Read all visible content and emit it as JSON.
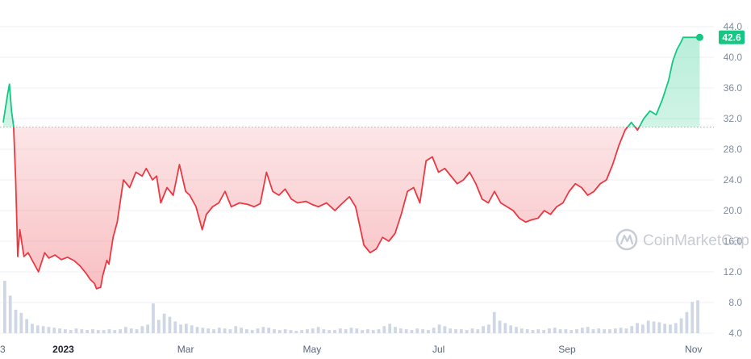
{
  "watermark": {
    "text": "CoinMarketCap"
  },
  "colors": {
    "up": "#16c784",
    "down": "#ea3943",
    "grid": "#eff2f5",
    "volume": "#cfd6e4",
    "baseline": "#a6b0c3"
  },
  "current_price_label": "42.6",
  "chart_data": {
    "type": "line",
    "title": "",
    "xlabel": "",
    "ylabel": "",
    "baseline": 30.9,
    "ylim": [
      4.0,
      44.0
    ],
    "yticks": [
      "4.0",
      "8.0",
      "12.0",
      "16.0",
      "20.0",
      "24.0",
      "28.0",
      "32.0",
      "36.0",
      "40.0",
      "44.0"
    ],
    "xtick_labels": [
      {
        "label": "3",
        "x": "2022-12-03",
        "bold": false
      },
      {
        "label": "2023",
        "x": "2023-01-01",
        "bold": true
      },
      {
        "label": "Mar",
        "x": "2023-03-01",
        "bold": false
      },
      {
        "label": "May",
        "x": "2023-05-01",
        "bold": false
      },
      {
        "label": "Jul",
        "x": "2023-07-01",
        "bold": false
      },
      {
        "label": "Sep",
        "x": "2023-09-01",
        "bold": false
      },
      {
        "label": "Nov",
        "x": "2023-11-01",
        "bold": false
      }
    ],
    "x_range": [
      "2022-12-03",
      "2023-11-05"
    ],
    "series": [
      {
        "x": [
          "2022-12-03",
          "2022-12-05",
          "2022-12-06",
          "2022-12-07",
          "2022-12-08",
          "2022-12-09",
          "2022-12-10",
          "2022-12-11",
          "2022-12-13",
          "2022-12-15",
          "2022-12-18",
          "2022-12-20",
          "2022-12-23",
          "2022-12-25",
          "2022-12-28",
          "2022-12-31",
          "2023-01-03",
          "2023-01-06",
          "2023-01-09",
          "2023-01-12",
          "2023-01-14",
          "2023-01-16",
          "2023-01-17",
          "2023-01-19",
          "2023-01-20",
          "2023-01-22",
          "2023-01-23",
          "2023-01-25",
          "2023-01-27",
          "2023-01-30",
          "2023-02-02",
          "2023-02-05",
          "2023-02-08",
          "2023-02-10",
          "2023-02-13",
          "2023-02-15",
          "2023-02-17",
          "2023-02-20",
          "2023-02-23",
          "2023-02-26",
          "2023-03-01",
          "2023-03-03",
          "2023-03-06",
          "2023-03-09",
          "2023-03-11",
          "2023-03-14",
          "2023-03-17",
          "2023-03-20",
          "2023-03-23",
          "2023-03-27",
          "2023-03-31",
          "2023-04-03",
          "2023-04-06",
          "2023-04-09",
          "2023-04-12",
          "2023-04-15",
          "2023-04-18",
          "2023-04-21",
          "2023-04-24",
          "2023-04-28",
          "2023-05-01",
          "2023-05-04",
          "2023-05-08",
          "2023-05-12",
          "2023-05-15",
          "2023-05-19",
          "2023-05-22",
          "2023-05-26",
          "2023-05-29",
          "2023-06-01",
          "2023-06-04",
          "2023-06-07",
          "2023-06-10",
          "2023-06-13",
          "2023-06-16",
          "2023-06-19",
          "2023-06-22",
          "2023-06-25",
          "2023-06-28",
          "2023-07-01",
          "2023-07-04",
          "2023-07-07",
          "2023-07-10",
          "2023-07-13",
          "2023-07-16",
          "2023-07-19",
          "2023-07-22",
          "2023-07-25",
          "2023-07-28",
          "2023-07-31",
          "2023-08-03",
          "2023-08-06",
          "2023-08-09",
          "2023-08-12",
          "2023-08-15",
          "2023-08-18",
          "2023-08-21",
          "2023-08-24",
          "2023-08-27",
          "2023-08-30",
          "2023-09-02",
          "2023-09-05",
          "2023-09-08",
          "2023-09-11",
          "2023-09-14",
          "2023-09-17",
          "2023-09-20",
          "2023-09-23",
          "2023-09-26",
          "2023-09-29",
          "2023-10-02",
          "2023-10-05",
          "2023-10-08",
          "2023-10-11",
          "2023-10-14",
          "2023-10-17",
          "2023-10-20",
          "2023-10-22",
          "2023-10-24",
          "2023-10-26",
          "2023-10-27",
          "2023-10-28",
          "2023-10-30",
          "2023-11-01",
          "2023-11-02",
          "2023-11-03",
          "2023-11-04"
        ],
        "y": [
          31.5,
          35.0,
          36.5,
          33.0,
          31.0,
          24.0,
          14.0,
          17.5,
          14.0,
          14.5,
          13.0,
          12.0,
          14.5,
          13.8,
          14.2,
          13.6,
          13.9,
          13.5,
          12.8,
          11.8,
          11.0,
          10.5,
          9.8,
          10.0,
          11.5,
          13.5,
          13.0,
          16.5,
          18.5,
          24.0,
          23.0,
          25.0,
          24.5,
          25.5,
          24.0,
          24.5,
          21.0,
          23.0,
          22.0,
          26.0,
          22.5,
          22.0,
          20.5,
          17.5,
          19.5,
          20.5,
          21.0,
          22.5,
          20.5,
          21.0,
          20.8,
          20.5,
          20.9,
          25.0,
          22.5,
          22.0,
          22.8,
          21.5,
          21.0,
          21.2,
          20.8,
          20.5,
          21.0,
          20.0,
          20.8,
          21.8,
          20.5,
          15.5,
          14.5,
          15.0,
          16.5,
          16.0,
          17.0,
          19.5,
          22.5,
          23.0,
          21.0,
          26.5,
          27.0,
          25.0,
          25.5,
          24.5,
          23.5,
          24.0,
          25.0,
          23.5,
          21.5,
          21.0,
          22.5,
          21.0,
          20.5,
          20.0,
          19.0,
          18.5,
          18.8,
          19.0,
          20.0,
          19.5,
          20.5,
          21.0,
          22.5,
          23.5,
          23.0,
          22.0,
          22.5,
          23.5,
          24.0,
          26.0,
          28.5,
          30.5,
          31.5,
          30.5,
          32.0,
          33.0,
          32.5,
          34.5,
          37.0,
          39.5,
          41.0,
          42.0,
          42.6,
          42.6,
          42.6,
          42.6,
          42.6,
          42.6,
          42.6
        ]
      }
    ],
    "volume_bars": [
      6.7,
      4.8,
      3.0,
      2.6,
      1.8,
      1.2,
      1.0,
      0.9,
      0.8,
      0.7,
      0.6,
      0.5,
      0.4,
      0.6,
      0.5,
      0.4,
      0.5,
      0.4,
      0.4,
      0.5,
      0.4,
      0.5,
      0.8,
      0.6,
      0.5,
      0.9,
      1.1,
      3.8,
      1.7,
      2.5,
      2.1,
      1.5,
      1.1,
      1.2,
      1.0,
      0.8,
      0.7,
      0.6,
      0.5,
      0.7,
      0.6,
      0.5,
      0.9,
      0.7,
      0.5,
      0.4,
      0.6,
      0.8,
      0.7,
      0.5,
      0.4,
      0.5,
      0.4,
      0.3,
      0.4,
      0.5,
      0.6,
      0.8,
      0.5,
      0.4,
      0.4,
      0.6,
      0.5,
      0.7,
      0.6,
      0.4,
      0.5,
      0.4,
      0.5,
      0.9,
      1.2,
      0.8,
      0.6,
      0.5,
      0.4,
      0.6,
      0.5,
      0.4,
      0.7,
      1.1,
      0.9,
      0.6,
      0.5,
      0.5,
      0.4,
      0.6,
      0.5,
      0.9,
      1.1,
      2.7,
      1.6,
      1.3,
      1.0,
      0.8,
      0.6,
      0.5,
      0.4,
      0.5,
      0.4,
      0.6,
      0.7,
      0.5,
      0.5,
      0.4,
      0.5,
      0.7,
      0.8,
      0.5,
      0.6,
      0.5,
      0.5,
      0.6,
      0.7,
      0.6,
      0.9,
      1.3,
      1.1,
      1.6,
      1.5,
      1.4,
      1.2,
      1.1,
      1.3,
      1.9,
      2.7,
      4.0,
      4.2
    ]
  }
}
